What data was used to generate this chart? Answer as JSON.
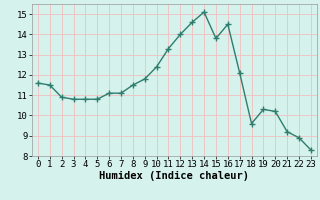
{
  "x": [
    0,
    1,
    2,
    3,
    4,
    5,
    6,
    7,
    8,
    9,
    10,
    11,
    12,
    13,
    14,
    15,
    16,
    17,
    18,
    19,
    20,
    21,
    22,
    23
  ],
  "y": [
    11.6,
    11.5,
    10.9,
    10.8,
    10.8,
    10.8,
    11.1,
    11.1,
    11.5,
    11.8,
    12.4,
    13.3,
    14.0,
    14.6,
    15.1,
    13.8,
    14.5,
    12.1,
    9.6,
    10.3,
    10.2,
    9.2,
    8.9,
    8.3
  ],
  "line_color": "#2e7d6e",
  "marker": "+",
  "marker_size": 4,
  "line_width": 1.0,
  "xlabel": "Humidex (Indice chaleur)",
  "xlim": [
    -0.5,
    23.5
  ],
  "ylim": [
    8,
    15.5
  ],
  "yticks": [
    8,
    9,
    10,
    11,
    12,
    13,
    14,
    15
  ],
  "xticks": [
    0,
    1,
    2,
    3,
    4,
    5,
    6,
    7,
    8,
    9,
    10,
    11,
    12,
    13,
    14,
    15,
    16,
    17,
    18,
    19,
    20,
    21,
    22,
    23
  ],
  "bg_color": "#d5f2ec",
  "grid_color": "#f0c0c0",
  "tick_label_fontsize": 6.5,
  "xlabel_fontsize": 7.5
}
